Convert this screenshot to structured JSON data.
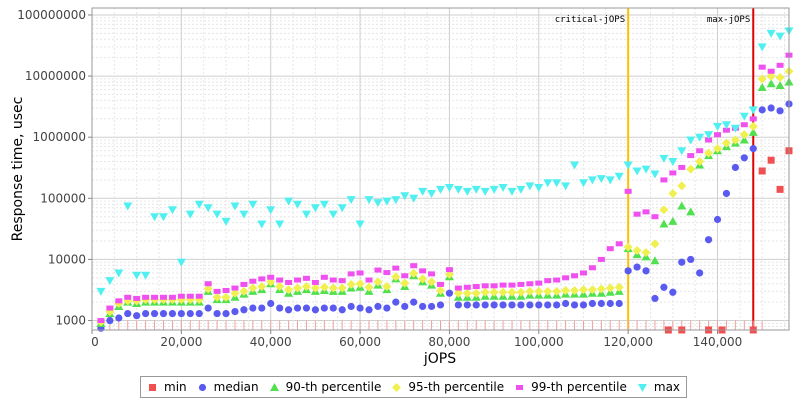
{
  "chart_data": {
    "type": "scatter",
    "title": "",
    "xlabel": "jOPS",
    "ylabel": "Response time, usec",
    "xlim": [
      0,
      156000
    ],
    "ylim": [
      700,
      130000000
    ],
    "y_scale": "log",
    "grid": true,
    "legend_position": "bottom",
    "x_ticks": [
      "0",
      "20,000",
      "40,000",
      "60,000",
      "80,000",
      "100,000",
      "120,000",
      "140,000"
    ],
    "x_tick_values": [
      0,
      20000,
      40000,
      60000,
      80000,
      100000,
      120000,
      140000
    ],
    "y_ticks": [
      "1000",
      "10000",
      "100000",
      "1000000",
      "10000000",
      "100000000"
    ],
    "y_tick_values": [
      1000,
      10000,
      100000,
      1000000,
      10000000,
      100000000
    ],
    "markers": [
      {
        "label": "critical-jOPS",
        "x": 120000,
        "color": "#ffc000"
      },
      {
        "label": "max-jOPS",
        "x": 148000,
        "color": "#e00000"
      }
    ],
    "series": [
      {
        "name": "min",
        "color": "#f05050",
        "shape": "square",
        "x": [
          129000,
          132000,
          138000,
          141000,
          148000,
          150000,
          152000,
          154000,
          156000
        ],
        "y": [
          700,
          700,
          700,
          700,
          700,
          280000,
          420000,
          140000,
          600000
        ]
      },
      {
        "name": "median",
        "color": "#5a5af0",
        "shape": "circle",
        "x": [
          2000,
          4000,
          6000,
          8000,
          10000,
          12000,
          14000,
          16000,
          18000,
          20000,
          22000,
          24000,
          26000,
          28000,
          30000,
          32000,
          34000,
          36000,
          38000,
          40000,
          42000,
          44000,
          46000,
          48000,
          50000,
          52000,
          54000,
          56000,
          58000,
          60000,
          62000,
          64000,
          66000,
          68000,
          70000,
          72000,
          74000,
          76000,
          78000,
          80000,
          82000,
          84000,
          86000,
          88000,
          90000,
          92000,
          94000,
          96000,
          98000,
          100000,
          102000,
          104000,
          106000,
          108000,
          110000,
          112000,
          114000,
          116000,
          118000,
          120000,
          122000,
          124000,
          126000,
          128000,
          130000,
          132000,
          134000,
          136000,
          138000,
          140000,
          142000,
          144000,
          146000,
          148000,
          150000,
          152000,
          154000,
          156000
        ],
        "y": [
          750,
          1000,
          1100,
          1300,
          1200,
          1300,
          1300,
          1300,
          1300,
          1300,
          1300,
          1300,
          1600,
          1300,
          1300,
          1400,
          1500,
          1600,
          1600,
          1900,
          1600,
          1500,
          1600,
          1600,
          1500,
          1600,
          1600,
          1500,
          1700,
          1600,
          1500,
          1700,
          1600,
          2000,
          1700,
          2000,
          1700,
          1700,
          1800,
          2800,
          1800,
          1800,
          1800,
          1800,
          1800,
          1800,
          1800,
          1800,
          1800,
          1800,
          1800,
          1800,
          1900,
          1800,
          1800,
          1900,
          1900,
          1900,
          1900,
          6500,
          7500,
          6500,
          2300,
          3500,
          2900,
          9000,
          10000,
          6000,
          21000,
          45000,
          120000,
          320000,
          460000,
          650000,
          2800000,
          3000000,
          2700000,
          3500000
        ]
      },
      {
        "name": "90-th percentile",
        "color": "#50e050",
        "shape": "triangle",
        "x": [
          2000,
          4000,
          6000,
          8000,
          10000,
          12000,
          14000,
          16000,
          18000,
          20000,
          22000,
          24000,
          26000,
          28000,
          30000,
          32000,
          34000,
          36000,
          38000,
          40000,
          42000,
          44000,
          46000,
          48000,
          50000,
          52000,
          54000,
          56000,
          58000,
          60000,
          62000,
          64000,
          66000,
          68000,
          70000,
          72000,
          74000,
          76000,
          78000,
          80000,
          82000,
          84000,
          86000,
          88000,
          90000,
          92000,
          94000,
          96000,
          98000,
          100000,
          102000,
          104000,
          106000,
          108000,
          110000,
          112000,
          114000,
          116000,
          118000,
          120000,
          122000,
          124000,
          126000,
          128000,
          130000,
          132000,
          134000,
          136000,
          138000,
          140000,
          142000,
          144000,
          146000,
          148000,
          150000,
          152000,
          154000,
          156000
        ],
        "y": [
          900,
          1300,
          1700,
          2000,
          1900,
          2000,
          2000,
          2000,
          2000,
          2000,
          2000,
          2000,
          3000,
          2200,
          2200,
          2400,
          2700,
          3000,
          3200,
          4000,
          3200,
          2800,
          3000,
          3200,
          3000,
          3100,
          3000,
          3000,
          3400,
          3500,
          3000,
          3800,
          3200,
          4800,
          3600,
          5400,
          4300,
          3800,
          2800,
          5200,
          2400,
          2400,
          2400,
          2500,
          2500,
          2500,
          2500,
          2500,
          2600,
          2600,
          2600,
          2600,
          2700,
          2700,
          2700,
          2800,
          2800,
          2900,
          3000,
          15000,
          12000,
          11000,
          9500,
          38000,
          42000,
          75000,
          60000,
          350000,
          500000,
          600000,
          700000,
          800000,
          900000,
          1200000,
          6500000,
          7500000,
          7000000,
          8000000
        ]
      },
      {
        "name": "95-th percentile",
        "color": "#f0f050",
        "shape": "diamond",
        "x": [
          2000,
          4000,
          6000,
          8000,
          10000,
          12000,
          14000,
          16000,
          18000,
          20000,
          22000,
          24000,
          26000,
          28000,
          30000,
          32000,
          34000,
          36000,
          38000,
          40000,
          42000,
          44000,
          46000,
          48000,
          50000,
          52000,
          54000,
          56000,
          58000,
          60000,
          62000,
          64000,
          66000,
          68000,
          70000,
          72000,
          74000,
          76000,
          78000,
          80000,
          82000,
          84000,
          86000,
          88000,
          90000,
          92000,
          94000,
          96000,
          98000,
          100000,
          102000,
          104000,
          106000,
          108000,
          110000,
          112000,
          114000,
          116000,
          118000,
          120000,
          122000,
          124000,
          126000,
          128000,
          130000,
          132000,
          134000,
          136000,
          138000,
          140000,
          142000,
          144000,
          146000,
          148000,
          150000,
          152000,
          154000,
          156000
        ],
        "y": [
          950,
          1400,
          1900,
          2100,
          2100,
          2200,
          2200,
          2200,
          2200,
          2200,
          2200,
          2200,
          3300,
          2400,
          2400,
          2800,
          3000,
          3400,
          3600,
          4300,
          3600,
          3200,
          3400,
          3600,
          3400,
          3500,
          3400,
          3400,
          3900,
          4000,
          3500,
          4300,
          3600,
          5200,
          4100,
          5900,
          4800,
          4300,
          3100,
          5700,
          2800,
          2800,
          2800,
          2900,
          2900,
          2900,
          2900,
          2900,
          3000,
          3000,
          3000,
          3000,
          3100,
          3100,
          3200,
          3200,
          3300,
          3400,
          3500,
          16000,
          14000,
          13000,
          18000,
          65000,
          120000,
          160000,
          300000,
          400000,
          550000,
          650000,
          800000,
          900000,
          1100000,
          1500000,
          9000000,
          10000000,
          9500000,
          12000000
        ]
      },
      {
        "name": "99-th percentile",
        "color": "#f050f0",
        "shape": "small-square",
        "x": [
          2000,
          4000,
          6000,
          8000,
          10000,
          12000,
          14000,
          16000,
          18000,
          20000,
          22000,
          24000,
          26000,
          28000,
          30000,
          32000,
          34000,
          36000,
          38000,
          40000,
          42000,
          44000,
          46000,
          48000,
          50000,
          52000,
          54000,
          56000,
          58000,
          60000,
          62000,
          64000,
          66000,
          68000,
          70000,
          72000,
          74000,
          76000,
          78000,
          80000,
          82000,
          84000,
          86000,
          88000,
          90000,
          92000,
          94000,
          96000,
          98000,
          100000,
          102000,
          104000,
          106000,
          108000,
          110000,
          112000,
          114000,
          116000,
          118000,
          120000,
          122000,
          124000,
          126000,
          128000,
          130000,
          132000,
          134000,
          136000,
          138000,
          140000,
          142000,
          144000,
          146000,
          148000,
          150000,
          152000,
          154000,
          156000
        ],
        "y": [
          1000,
          1600,
          2100,
          2400,
          2300,
          2400,
          2400,
          2400,
          2400,
          2500,
          2500,
          2500,
          4000,
          3000,
          3100,
          3400,
          3900,
          4400,
          4800,
          5100,
          4600,
          4200,
          4600,
          4900,
          4200,
          5100,
          4600,
          4500,
          5800,
          6000,
          4600,
          6700,
          6100,
          7200,
          5400,
          7900,
          6500,
          5800,
          3900,
          6800,
          3400,
          3500,
          3600,
          3700,
          3700,
          3800,
          3800,
          3900,
          4000,
          4100,
          4500,
          4600,
          5000,
          5400,
          6000,
          7300,
          10000,
          15000,
          18000,
          130000,
          55000,
          60000,
          50000,
          200000,
          260000,
          320000,
          500000,
          600000,
          900000,
          1100000,
          1300000,
          1400000,
          1600000,
          2000000,
          14000000,
          12000000,
          15000000,
          22000000
        ]
      },
      {
        "name": "max",
        "color": "#50f0f0",
        "shape": "triangle-down",
        "x": [
          2000,
          4000,
          6000,
          8000,
          10000,
          12000,
          14000,
          16000,
          18000,
          20000,
          22000,
          24000,
          26000,
          28000,
          30000,
          32000,
          34000,
          36000,
          38000,
          40000,
          42000,
          44000,
          46000,
          48000,
          50000,
          52000,
          54000,
          56000,
          58000,
          60000,
          62000,
          64000,
          66000,
          68000,
          70000,
          72000,
          74000,
          76000,
          78000,
          80000,
          82000,
          84000,
          86000,
          88000,
          90000,
          92000,
          94000,
          96000,
          98000,
          100000,
          102000,
          104000,
          106000,
          108000,
          110000,
          112000,
          114000,
          116000,
          118000,
          120000,
          122000,
          124000,
          126000,
          128000,
          130000,
          132000,
          134000,
          136000,
          138000,
          140000,
          142000,
          144000,
          146000,
          148000,
          150000,
          152000,
          154000,
          156000
        ],
        "y": [
          3000,
          4500,
          6000,
          75000,
          5500,
          5500,
          50000,
          50000,
          65000,
          9000,
          55000,
          80000,
          70000,
          55000,
          42000,
          75000,
          55000,
          80000,
          38000,
          65000,
          38000,
          90000,
          80000,
          55000,
          70000,
          80000,
          55000,
          70000,
          95000,
          38000,
          95000,
          85000,
          90000,
          95000,
          110000,
          100000,
          130000,
          120000,
          140000,
          150000,
          140000,
          130000,
          140000,
          130000,
          140000,
          150000,
          130000,
          140000,
          160000,
          150000,
          180000,
          180000,
          160000,
          350000,
          180000,
          200000,
          210000,
          200000,
          230000,
          350000,
          280000,
          300000,
          250000,
          450000,
          400000,
          600000,
          900000,
          1000000,
          1100000,
          1500000,
          1600000,
          1400000,
          2200000,
          2800000,
          30000000,
          50000000,
          45000000,
          55000000
        ]
      }
    ]
  }
}
